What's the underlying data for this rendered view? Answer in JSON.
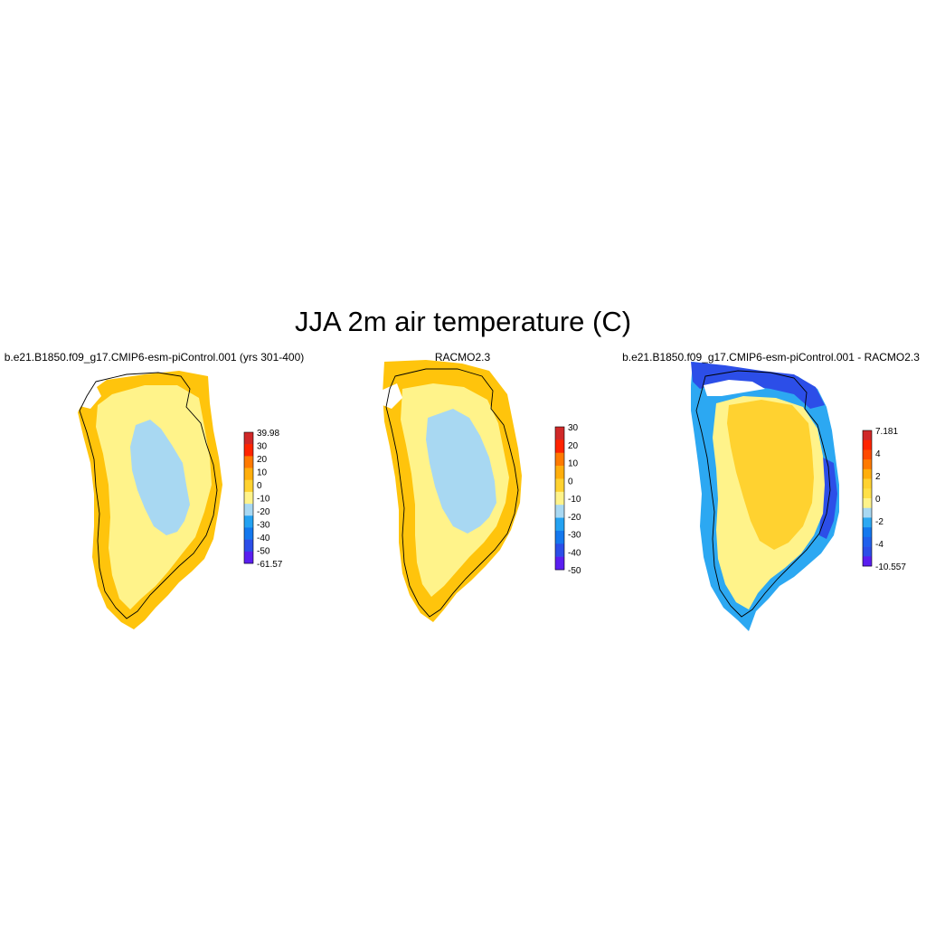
{
  "figure": {
    "title": "JJA 2m air temperature (C)"
  },
  "palettes": {
    "main": [
      "#5a1ef0",
      "#2c4ee8",
      "#1478ee",
      "#24a2f2",
      "#a8d8f2",
      "#fff38a",
      "#ffd230",
      "#ffae0c",
      "#ff7a00",
      "#ff2400",
      "#d02828"
    ],
    "diff": [
      "#5a1ef0",
      "#2c4ee8",
      "#2060ec",
      "#1478ee",
      "#2ca8f2",
      "#a8d8f2",
      "#fff38a",
      "#ffe047",
      "#ffd230",
      "#ffae0c",
      "#ff7a00",
      "#ff4a00",
      "#ff2400",
      "#d02828"
    ]
  },
  "panels": [
    {
      "title": "b.e21.B1850.f09_g17.CMIP6-esm-piControl.001 (yrs 301-400)",
      "colorbar": {
        "palette": "main",
        "labels": [
          "39.98",
          "30",
          "20",
          "10",
          "0",
          "-10",
          "-20",
          "-30",
          "-40",
          "-50",
          "-61.57"
        ]
      }
    },
    {
      "title": "RACMO2.3",
      "colorbar": {
        "palette": "main",
        "labels": [
          "30",
          "20",
          "10",
          "0",
          "-10",
          "-20",
          "-30",
          "-40",
          "-50"
        ]
      }
    },
    {
      "title": "b.e21.B1850.f09_g17.CMIP6-esm-piControl.001 - RACMO2.3",
      "colorbar": {
        "palette": "diff",
        "labels": [
          "7.181",
          "4",
          "2",
          "0",
          "-2",
          "-4",
          "-10.557"
        ]
      }
    }
  ]
}
